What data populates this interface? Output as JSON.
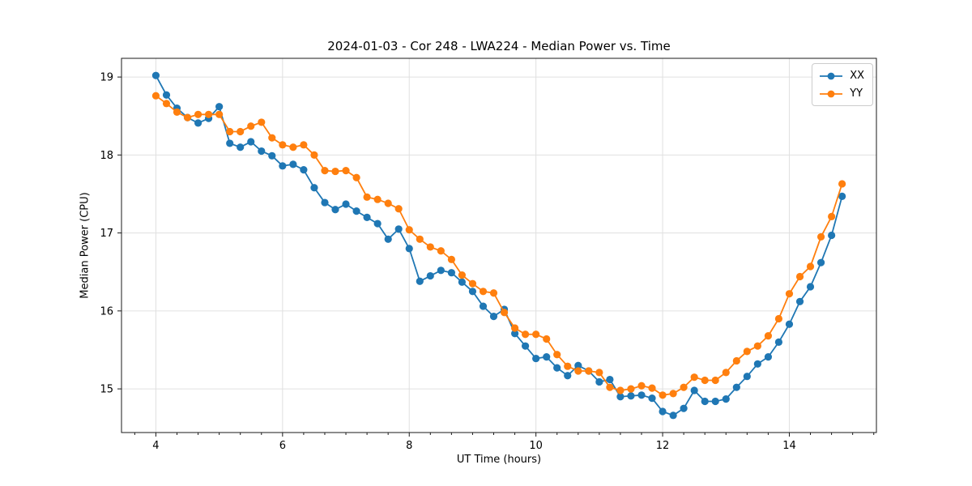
{
  "figure": {
    "background": "#ffffff"
  },
  "chart_data": {
    "type": "line",
    "title": "2024-01-03 - Cor 248 - LWA224 - Median Power vs. Time",
    "xlabel": "UT Time (hours)",
    "ylabel": "Median Power (CPU)",
    "xlim": [
      3.4575,
      15.375
    ],
    "ylim": [
      14.44,
      19.24
    ],
    "xticks": [
      4,
      6,
      8,
      10,
      12,
      14
    ],
    "yticks": [
      15,
      16,
      17,
      18,
      19
    ],
    "x_minor_tick_step": 0.33333,
    "grid": true,
    "grid_color": "#e0e0e0",
    "spine_color": "#1a1a1a",
    "legend_position": "upper right",
    "marker": "circle",
    "x": [
      4.0,
      4.167,
      4.333,
      4.5,
      4.667,
      4.833,
      5.0,
      5.167,
      5.333,
      5.5,
      5.667,
      5.833,
      6.0,
      6.167,
      6.333,
      6.5,
      6.667,
      6.833,
      7.0,
      7.167,
      7.333,
      7.5,
      7.667,
      7.833,
      8.0,
      8.167,
      8.333,
      8.5,
      8.667,
      8.833,
      9.0,
      9.167,
      9.333,
      9.5,
      9.667,
      9.833,
      10.0,
      10.167,
      10.333,
      10.5,
      10.667,
      10.833,
      11.0,
      11.167,
      11.333,
      11.5,
      11.667,
      11.833,
      12.0,
      12.167,
      12.333,
      12.5,
      12.667,
      12.833,
      13.0,
      13.167,
      13.333,
      13.5,
      13.667,
      13.833,
      14.0,
      14.167,
      14.333,
      14.5,
      14.667,
      14.833
    ],
    "series": [
      {
        "name": "XX",
        "color": "#1f77b4",
        "values": [
          19.02,
          18.77,
          18.6,
          18.48,
          18.41,
          18.47,
          18.62,
          18.15,
          18.1,
          18.17,
          18.05,
          17.99,
          17.86,
          17.88,
          17.81,
          17.58,
          17.39,
          17.3,
          17.37,
          17.28,
          17.2,
          17.12,
          16.92,
          17.05,
          16.8,
          16.38,
          16.45,
          16.52,
          16.49,
          16.37,
          16.25,
          16.06,
          15.93,
          16.02,
          15.71,
          15.55,
          15.39,
          15.41,
          15.27,
          15.17,
          15.3,
          15.23,
          15.09,
          15.12,
          14.9,
          14.91,
          14.92,
          14.88,
          14.71,
          14.66,
          14.75,
          14.98,
          14.84,
          14.84,
          14.87,
          15.02,
          15.16,
          15.32,
          15.41,
          15.6,
          15.83,
          16.12,
          16.31,
          16.62,
          16.97,
          17.47
        ]
      },
      {
        "name": "YY",
        "color": "#ff7f0e",
        "values": [
          18.76,
          18.66,
          18.55,
          18.48,
          18.52,
          18.52,
          18.52,
          18.3,
          18.3,
          18.37,
          18.42,
          18.22,
          18.13,
          18.1,
          18.13,
          18.0,
          17.8,
          17.79,
          17.8,
          17.71,
          17.46,
          17.43,
          17.38,
          17.31,
          17.04,
          16.92,
          16.82,
          16.77,
          16.66,
          16.46,
          16.35,
          16.25,
          16.23,
          15.98,
          15.78,
          15.7,
          15.7,
          15.64,
          15.44,
          15.29,
          15.23,
          15.23,
          15.21,
          15.02,
          14.98,
          15.0,
          15.04,
          15.01,
          14.92,
          14.94,
          15.02,
          15.15,
          15.11,
          15.11,
          15.21,
          15.36,
          15.48,
          15.55,
          15.68,
          15.9,
          16.22,
          16.44,
          16.57,
          16.95,
          17.21,
          17.63
        ]
      }
    ]
  }
}
